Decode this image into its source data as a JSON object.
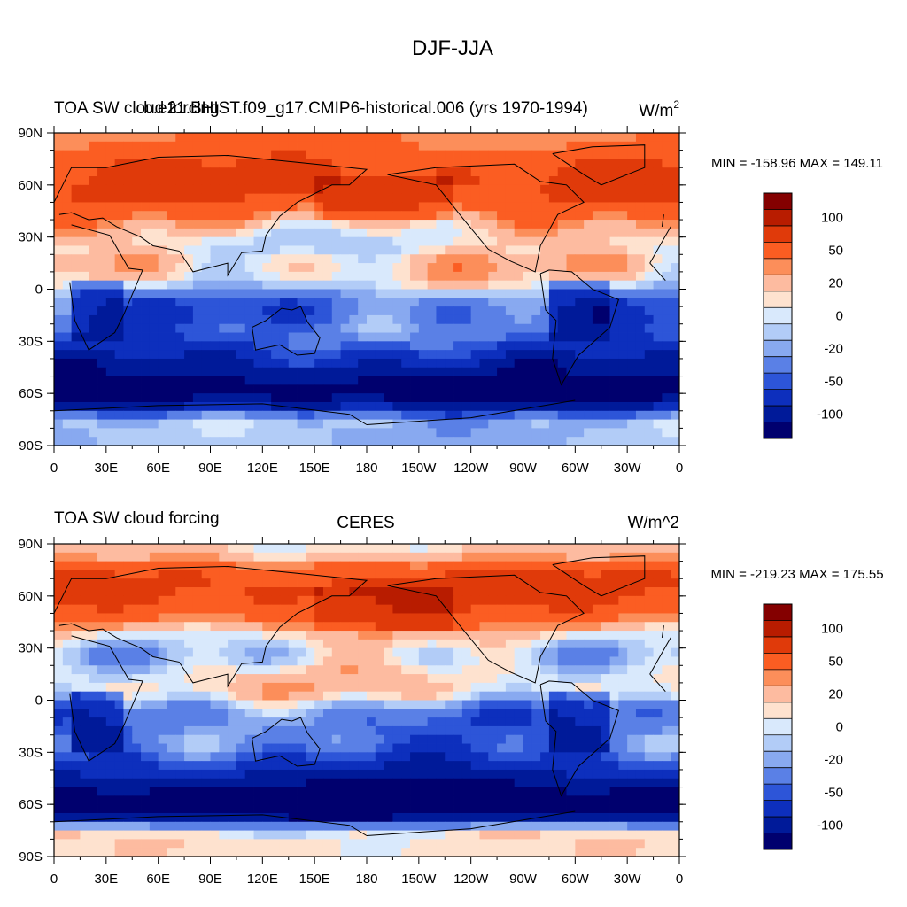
{
  "page": {
    "title": "DJF-JJA"
  },
  "panels": [
    {
      "left_title": "TOA SW cloud forcing",
      "center_title": "b.e21.BHIST.f09_g17.CMIP6-historical.006 (yrs 1970-1994)",
      "units_base": "W/m",
      "units_exp": "2",
      "units_text": "",
      "minmax": "MIN = -158.96 MAX = 149.11"
    },
    {
      "left_title": "TOA SW cloud forcing",
      "center_title": "CERES",
      "units_base": "",
      "units_exp": "",
      "units_text": "W/m^2",
      "minmax": "MIN = -219.23 MAX = 175.55"
    }
  ],
  "colorbar": {
    "labels": [
      "100",
      "50",
      "20",
      "0",
      "-20",
      "-50",
      "-100"
    ],
    "colors": [
      "#840000",
      "#b81c00",
      "#e03a0a",
      "#fb5d22",
      "#fc8e5a",
      "#fdbba0",
      "#fee2cf",
      "#d9e9fc",
      "#b2ccf7",
      "#88a9f0",
      "#5a80e6",
      "#2d55d8",
      "#0d2fbd",
      "#001a99",
      "#00006e"
    ]
  },
  "chart_data": [
    {
      "type": "heatmap",
      "title": "TOA SW cloud forcing",
      "subtitle": "b.e21.BHIST.f09_g17.CMIP6-historical.006 (yrs 1970-1994)",
      "x_ticks": [
        "0",
        "30E",
        "60E",
        "90E",
        "120E",
        "150E",
        "180",
        "150W",
        "120W",
        "90W",
        "60W",
        "30W",
        "0"
      ],
      "y_ticks": [
        "90N",
        "60N",
        "30N",
        "0",
        "30S",
        "60S",
        "90S"
      ],
      "xlim": [
        0,
        360
      ],
      "ylim": [
        -90,
        90
      ],
      "min": -158.96,
      "max": 149.11,
      "zonal_profile": {
        "lat": [
          85,
          75,
          65,
          55,
          45,
          35,
          25,
          15,
          5,
          -5,
          -15,
          -25,
          -35,
          -45,
          -55,
          -65,
          -75,
          -85
        ],
        "values": [
          50,
          70,
          80,
          75,
          55,
          20,
          5,
          25,
          15,
          -30,
          -40,
          -30,
          -55,
          -85,
          -110,
          -105,
          -10,
          -10
        ]
      }
    },
    {
      "type": "heatmap",
      "title": "TOA SW cloud forcing",
      "subtitle": "CERES",
      "x_ticks": [
        "0",
        "30E",
        "60E",
        "90E",
        "120E",
        "150E",
        "180",
        "150W",
        "120W",
        "90W",
        "60W",
        "30W",
        "0"
      ],
      "y_ticks": [
        "90N",
        "60N",
        "30N",
        "0",
        "30S",
        "60S",
        "90S"
      ],
      "xlim": [
        0,
        360
      ],
      "ylim": [
        -90,
        90
      ],
      "min": -219.23,
      "max": 175.55,
      "zonal_profile": {
        "lat": [
          85,
          75,
          65,
          55,
          45,
          35,
          25,
          15,
          5,
          -5,
          -15,
          -25,
          -35,
          -45,
          -55,
          -65,
          -75,
          -85
        ],
        "values": [
          20,
          70,
          85,
          75,
          50,
          10,
          -5,
          15,
          20,
          -25,
          -35,
          -30,
          -55,
          -90,
          -120,
          -130,
          10,
          15
        ]
      }
    }
  ]
}
